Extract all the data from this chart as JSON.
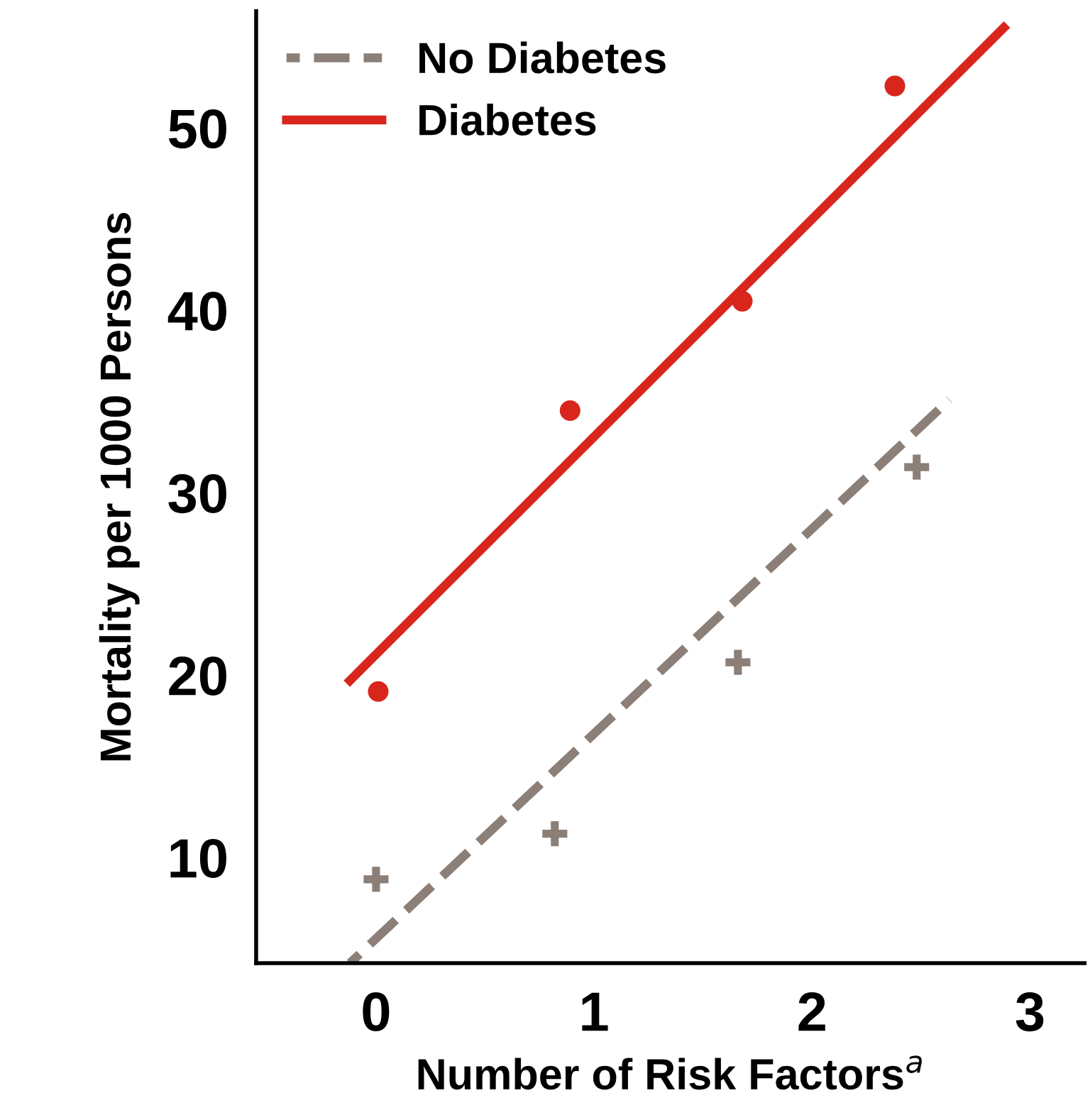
{
  "chart_data": {
    "type": "scatter",
    "xlabel": "Number of Risk Factors$^{a}$",
    "ylabel": "Mortality per 1000 Persons",
    "xlim": [
      -0.55,
      3.25
    ],
    "ylim": [
      4.2,
      56.4
    ],
    "xticks": [
      0,
      1,
      2,
      3
    ],
    "yticks": [
      10,
      20,
      30,
      40,
      50
    ],
    "grid": false,
    "legend": "top left",
    "series": [
      {
        "marker": "cross",
        "color": "#8b7f77",
        "x": [
          0.0,
          0.82,
          1.66,
          2.48
        ],
        "values": [
          8.8,
          11.3,
          20.7,
          31.4
        ]
      },
      {
        "marker": "circle",
        "color": "#d9261c",
        "x": [
          0.01,
          0.89,
          1.68,
          2.38
        ],
        "values": [
          19.1,
          34.5,
          40.5,
          52.3
        ]
      },
      {
        "type": "line",
        "name": "No Diabetes",
        "line_style": "dashed",
        "color": "#8b7f77",
        "x": [
          -0.12,
          2.63
        ],
        "values": [
          4.2,
          35.1
        ]
      },
      {
        "type": "line",
        "name": "Diabetes",
        "line_style": "solid",
        "color": "#d9261c",
        "x": [
          -0.12,
          2.88
        ],
        "values": [
          19.7,
          55.5
        ]
      }
    ]
  }
}
